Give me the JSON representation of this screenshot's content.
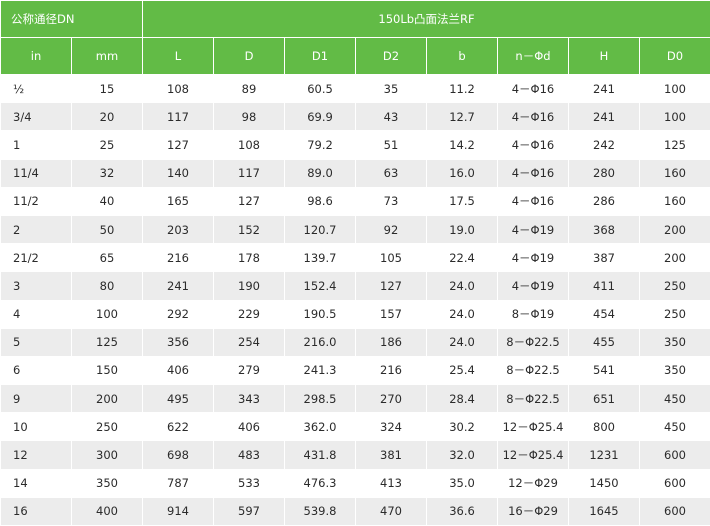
{
  "header": {
    "group_dn": "公称通径DN",
    "group_flange": "150Lb凸面法兰RF",
    "columns": [
      "in",
      "mm",
      "L",
      "D",
      "D1",
      "D2",
      "b",
      "n－Φd",
      "H",
      "D0"
    ]
  },
  "rows": [
    [
      "½",
      "15",
      "108",
      "89",
      "60.5",
      "35",
      "11.2",
      "4－Φ16",
      "241",
      "100"
    ],
    [
      "3/4",
      "20",
      "117",
      "98",
      "69.9",
      "43",
      "12.7",
      "4－Φ16",
      "241",
      "100"
    ],
    [
      "1",
      "25",
      "127",
      "108",
      "79.2",
      "51",
      "14.2",
      "4－Φ16",
      "242",
      "125"
    ],
    [
      "11/4",
      "32",
      "140",
      "117",
      "89.0",
      "63",
      "16.0",
      "4－Φ16",
      "280",
      "160"
    ],
    [
      "11/2",
      "40",
      "165",
      "127",
      "98.6",
      "73",
      "17.5",
      "4－Φ16",
      "286",
      "160"
    ],
    [
      "2",
      "50",
      "203",
      "152",
      "120.7",
      "92",
      "19.0",
      "4－Φ19",
      "368",
      "200"
    ],
    [
      "21/2",
      "65",
      "216",
      "178",
      "139.7",
      "105",
      "22.4",
      "4－Φ19",
      "387",
      "200"
    ],
    [
      "3",
      "80",
      "241",
      "190",
      "152.4",
      "127",
      "24.0",
      "4－Φ19",
      "411",
      "250"
    ],
    [
      "4",
      "100",
      "292",
      "229",
      "190.5",
      "157",
      "24.0",
      "8－Φ19",
      "454",
      "250"
    ],
    [
      "5",
      "125",
      "356",
      "254",
      "216.0",
      "186",
      "24.0",
      "8－Φ22.5",
      "455",
      "350"
    ],
    [
      "6",
      "150",
      "406",
      "279",
      "241.3",
      "216",
      "25.4",
      "8－Φ22.5",
      "541",
      "350"
    ],
    [
      "9",
      "200",
      "495",
      "343",
      "298.5",
      "270",
      "28.4",
      "8－Φ22.5",
      "651",
      "450"
    ],
    [
      "10",
      "250",
      "622",
      "406",
      "362.0",
      "324",
      "30.2",
      "12－Φ25.4",
      "800",
      "450"
    ],
    [
      "12",
      "300",
      "698",
      "483",
      "431.8",
      "381",
      "32.0",
      "12－Φ25.4",
      "1231",
      "600"
    ],
    [
      "14",
      "350",
      "787",
      "533",
      "476.3",
      "413",
      "35.0",
      "12－Φ29",
      "1450",
      "600"
    ],
    [
      "16",
      "400",
      "914",
      "597",
      "539.8",
      "470",
      "36.6",
      "16－Φ29",
      "1645",
      "600"
    ]
  ]
}
